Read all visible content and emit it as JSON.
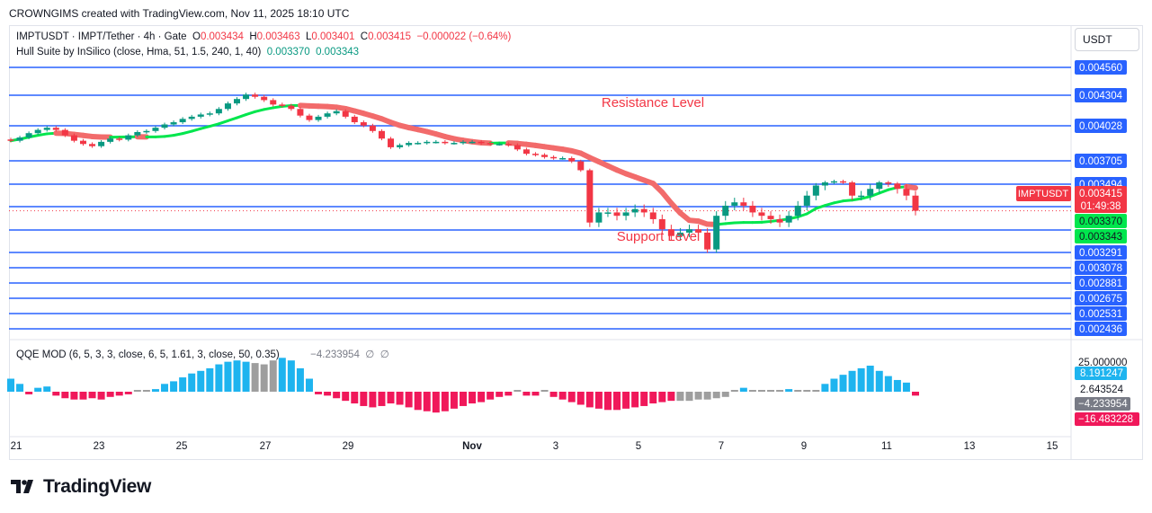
{
  "header": {
    "credit": "CROWNGIMS created with TradingView.com, Nov 11, 2025 18:10 UTC"
  },
  "legend": {
    "symbol": "IMPTUSDT · IMPT/Tether · 4h · Gate",
    "o_label": "O",
    "o": "0.003434",
    "h_label": "H",
    "h": "0.003463",
    "l_label": "L",
    "l": "0.003401",
    "c_label": "C",
    "c": "0.003415",
    "change": "−0.000022 (−0.64%)",
    "hull_name": "Hull Suite by InSilico (close, Hma, 51, 1.5, 240, 1, 40)",
    "hull_v1": "0.003370",
    "hull_v2": "0.003343",
    "qqe_name": "QQE MOD (6, 5, 3, 3, close, 6, 5, 1.61, 3, close, 50, 0.35)",
    "qqe_value": "−4.233954",
    "qqe_na1": "∅",
    "qqe_na2": "∅"
  },
  "unit": "USDT",
  "annotations": {
    "resistance": "Resistance Level",
    "support": "Support Level"
  },
  "brand": {
    "name": "TradingView"
  },
  "colors": {
    "up": "#089981",
    "down": "#f23645",
    "hull_up": "#00e64d",
    "hull_down": "#f26b6b",
    "level": "#2962ff",
    "qqe_blue": "#1eb4ef",
    "qqe_pink": "#f0185a",
    "qqe_gray": "#9e9e9e"
  },
  "chart_data": {
    "type": "candlestick",
    "symbol": "IMPTUSDT",
    "timeframe": "4h",
    "x_ticks": [
      "21",
      "23",
      "25",
      "27",
      "29",
      "Nov",
      "3",
      "5",
      "7",
      "9",
      "11",
      "13",
      "15"
    ],
    "price_axis_ticks": [
      "0.004560",
      "0.004304",
      "0.004028",
      "0.003705",
      "0.003494",
      "0.003291",
      "0.003078",
      "0.002881",
      "0.002675",
      "0.002531",
      "0.002436"
    ],
    "horizontal_levels": [
      0.00456,
      0.004304,
      0.004028,
      0.003705,
      0.003494,
      0.003291,
      0.003078,
      0.002881,
      0.002675,
      0.002531,
      0.002436
    ],
    "last_price": {
      "label": "IMPTUSDT",
      "value": "0.003415",
      "countdown": "01:49:38"
    },
    "hull_labels": [
      "0.003370",
      "0.003343"
    ],
    "close_series": [
      0.00389,
      0.00392,
      0.00396,
      0.00399,
      0.00401,
      0.00399,
      0.00394,
      0.00389,
      0.00386,
      0.00384,
      0.00388,
      0.00391,
      0.0039,
      0.00394,
      0.00397,
      0.00398,
      0.00401,
      0.00404,
      0.00406,
      0.00409,
      0.00411,
      0.00413,
      0.00414,
      0.00418,
      0.00423,
      0.00427,
      0.00431,
      0.00429,
      0.00426,
      0.00422,
      0.00421,
      0.00418,
      0.00412,
      0.00408,
      0.00411,
      0.00414,
      0.00416,
      0.00411,
      0.00406,
      0.00403,
      0.00398,
      0.00391,
      0.00383,
      0.00385,
      0.00387,
      0.00387,
      0.00388,
      0.00388,
      0.00387,
      0.00387,
      0.00388,
      0.00388,
      0.00387,
      0.00386,
      0.00386,
      0.00385,
      0.00381,
      0.00377,
      0.00376,
      0.00374,
      0.00373,
      0.00373,
      0.0037,
      0.00362,
      0.00338,
      0.00341,
      0.00341,
      0.0034,
      0.00341,
      0.00342,
      0.00341,
      0.00339,
      0.00336,
      0.00334,
      0.00335,
      0.00336,
      0.00335,
      0.0033,
      0.0034,
      0.00343,
      0.00344,
      0.00343,
      0.00341,
      0.0034,
      0.00339,
      0.00338,
      0.0034,
      0.00343,
      0.00346,
      0.00349,
      0.00351,
      0.00352,
      0.00351,
      0.00346,
      0.00346,
      0.00348,
      0.00351,
      0.0035,
      0.00348,
      0.00346,
      0.003415
    ],
    "ranges": {
      "price": [
        0.002436,
        0.00456
      ],
      "qqe": [
        -16.483228,
        25.0
      ]
    },
    "qqe": {
      "axis_labels": [
        "25.000000",
        "8.191247",
        "2.643524",
        "−4.233954",
        "−16.483228"
      ],
      "histogram": [
        10,
        6,
        -2,
        3,
        4,
        -3,
        -5,
        -6,
        -6,
        -5,
        -6,
        -4,
        -3,
        -2,
        0,
        0,
        2,
        6,
        8,
        11,
        14,
        16,
        18,
        21,
        23,
        24,
        23,
        22,
        21,
        24,
        26,
        24,
        18,
        10,
        -2,
        -3,
        -5,
        -7,
        -9,
        -11,
        -12,
        -11,
        -9,
        -10,
        -12,
        -14,
        -15,
        -16,
        -15,
        -13,
        -11,
        -9,
        -8,
        -6,
        -4,
        -3,
        0,
        -3,
        -3,
        0,
        -4,
        -6,
        -8,
        -10,
        -12,
        -13,
        -14,
        -14,
        -13,
        -12,
        -11,
        -9,
        -8,
        -7,
        -7,
        -7,
        -6,
        -6,
        -5,
        -4,
        0,
        3,
        0,
        0,
        0,
        0,
        2,
        0,
        0,
        0,
        6,
        10,
        13,
        16,
        18,
        20,
        16,
        12,
        9,
        7,
        -3
      ]
    }
  }
}
